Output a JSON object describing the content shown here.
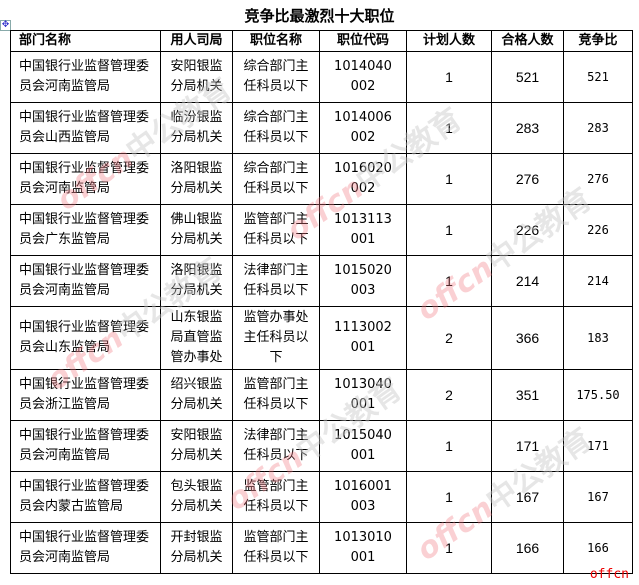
{
  "title": "竞争比最激烈十大职位",
  "headers": [
    "部门名称",
    "用人司局",
    "职位名称",
    "职位代码",
    "计划人数",
    "合格人数",
    "竞争比"
  ],
  "rows": [
    {
      "dept": "中国银行业监督管理委员会河南监管局",
      "bureau": "安阳银监分局机关",
      "position": "综合部门主任科员以下",
      "code": "1014040002",
      "plan": "1",
      "qualified": "521",
      "ratio": "521"
    },
    {
      "dept": "中国银行业监督管理委员会山西监管局",
      "bureau": "临汾银监分局机关",
      "position": "综合部门主任科员以下",
      "code": "1014006002",
      "plan": "1",
      "qualified": "283",
      "ratio": "283"
    },
    {
      "dept": "中国银行业监督管理委员会河南监管局",
      "bureau": "洛阳银监分局机关",
      "position": "综合部门主任科员以下",
      "code": "1016020002",
      "plan": "1",
      "qualified": "276",
      "ratio": "276"
    },
    {
      "dept": "中国银行业监督管理委员会广东监管局",
      "bureau": "佛山银监分局机关",
      "position": "监管部门主任科员以下",
      "code": "1013113001",
      "plan": "1",
      "qualified": "226",
      "ratio": "226"
    },
    {
      "dept": "中国银行业监督管理委员会河南监管局",
      "bureau": "洛阳银监分局机关",
      "position": "法律部门主任科员以下",
      "code": "1015020003",
      "plan": "1",
      "qualified": "214",
      "ratio": "214"
    },
    {
      "dept": "中国银行业监督管理委员会山东监管局",
      "bureau": "山东银监局直管监管办事处",
      "position": "监管办事处主任科员以下",
      "code": "1113002001",
      "plan": "2",
      "qualified": "366",
      "ratio": "183"
    },
    {
      "dept": "中国银行业监督管理委员会浙江监管局",
      "bureau": "绍兴银监分局机关",
      "position": "监管部门主任科员以下",
      "code": "1013040001",
      "plan": "2",
      "qualified": "351",
      "ratio": "175.50"
    },
    {
      "dept": "中国银行业监督管理委员会河南监管局",
      "bureau": "安阳银监分局机关",
      "position": "法律部门主任科员以下",
      "code": "1015040001",
      "plan": "1",
      "qualified": "171",
      "ratio": "171"
    },
    {
      "dept": "中国银行业监督管理委员会内蒙古监管局",
      "bureau": "包头银监分局机关",
      "position": "监管部门主任科员以下",
      "code": "1016001003",
      "plan": "1",
      "qualified": "167",
      "ratio": "167"
    },
    {
      "dept": "中国银行业监督管理委员会河南监管局",
      "bureau": "开封银监分局机关",
      "position": "监管部门主任科员以下",
      "code": "1013010001",
      "plan": "1",
      "qualified": "166",
      "ratio": "166"
    }
  ],
  "watermark": {
    "brand": "offcn",
    "text": "中公教育"
  },
  "corner_logo": "offcn",
  "colors": {
    "watermark_red": "#f08090",
    "logo_red": "#e00000"
  }
}
